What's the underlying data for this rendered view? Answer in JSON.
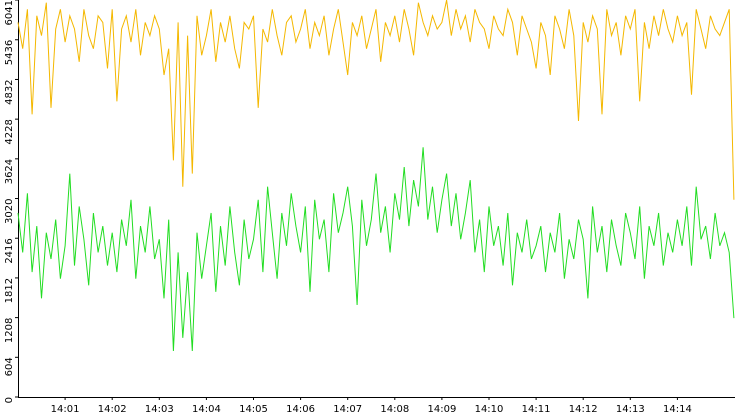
{
  "chart_data": {
    "type": "line",
    "categories": [
      null,
      null,
      null,
      null,
      null,
      null,
      null,
      null,
      null,
      null,
      "14:01",
      null,
      null,
      null,
      null,
      null,
      null,
      null,
      null,
      null,
      "14:02",
      null,
      null,
      null,
      null,
      null,
      null,
      null,
      null,
      null,
      "14:03",
      null,
      null,
      null,
      null,
      null,
      null,
      null,
      null,
      null,
      "14:04",
      null,
      null,
      null,
      null,
      null,
      null,
      null,
      null,
      null,
      "14:05",
      null,
      null,
      null,
      null,
      null,
      null,
      null,
      null,
      null,
      "14:06",
      null,
      null,
      null,
      null,
      null,
      null,
      null,
      null,
      null,
      "14:07",
      null,
      null,
      null,
      null,
      null,
      null,
      null,
      null,
      null,
      "14:08",
      null,
      null,
      null,
      null,
      null,
      null,
      null,
      null,
      null,
      "14:09",
      null,
      null,
      null,
      null,
      null,
      null,
      null,
      null,
      null,
      "14:10",
      null,
      null,
      null,
      null,
      null,
      null,
      null,
      null,
      null,
      "14:11",
      null,
      null,
      null,
      null,
      null,
      null,
      null,
      null,
      null,
      "14:12",
      null,
      null,
      null,
      null,
      null,
      null,
      null,
      null,
      null,
      "14:13",
      null,
      null,
      null,
      null,
      null,
      null,
      null,
      null,
      null,
      "14:14",
      null,
      null,
      null,
      null,
      null,
      null,
      null,
      null,
      null,
      null,
      null,
      null
    ],
    "series": [
      {
        "color": "#f4b800",
        "values": [
          5700,
          5300,
          5900,
          4300,
          5800,
          5500,
          6000,
          4400,
          5600,
          5900,
          5400,
          5800,
          5600,
          5100,
          5900,
          5500,
          5300,
          5800,
          5700,
          5000,
          5900,
          4500,
          5600,
          5800,
          5400,
          5900,
          5200,
          5700,
          5500,
          5800,
          5600,
          4900,
          5300,
          3600,
          5700,
          3200,
          5500,
          3400,
          5800,
          5200,
          5500,
          5900,
          5100,
          5700,
          5400,
          5800,
          5300,
          5000,
          5700,
          5600,
          5800,
          4400,
          5600,
          5400,
          5900,
          5500,
          5200,
          5700,
          5800,
          5400,
          5600,
          5900,
          5300,
          5700,
          5500,
          5800,
          5200,
          5600,
          5900,
          5400,
          4900,
          5700,
          5500,
          5800,
          5300,
          5600,
          5900,
          5100,
          5700,
          5500,
          5800,
          5400,
          5900,
          5600,
          5200,
          6000,
          5700,
          5500,
          5800,
          5600,
          5700,
          6041,
          5500,
          5900,
          5600,
          5800,
          5400,
          5900,
          5700,
          5600,
          5300,
          5800,
          5600,
          5500,
          5900,
          5700,
          5200,
          5800,
          5600,
          5400,
          5000,
          5700,
          5500,
          4900,
          5800,
          5600,
          5300,
          5900,
          5500,
          4200,
          5700,
          5400,
          5800,
          5600,
          4300,
          5900,
          5500,
          5700,
          5200,
          5800,
          5600,
          5900,
          4500,
          5700,
          5300,
          5800,
          5500,
          5900,
          5600,
          5400,
          5800,
          5500,
          5700,
          4600,
          5900,
          5600,
          5300,
          5800,
          5600,
          5500,
          5700,
          5900,
          3000
        ]
      },
      {
        "color": "#22dd22",
        "values": [
          2800,
          2200,
          3100,
          1900,
          2600,
          1500,
          2500,
          2100,
          2700,
          1800,
          2300,
          3400,
          2000,
          2900,
          2400,
          1700,
          2800,
          2200,
          2600,
          2000,
          2500,
          1900,
          2700,
          2300,
          3000,
          1800,
          2600,
          2200,
          2900,
          2100,
          2400,
          1500,
          2700,
          700,
          2200,
          900,
          1900,
          700,
          2500,
          1800,
          2300,
          2800,
          1600,
          2600,
          2000,
          2900,
          2200,
          1700,
          2700,
          2100,
          2400,
          3000,
          1900,
          3200,
          2500,
          1800,
          2800,
          2300,
          3100,
          2600,
          2200,
          2900,
          1600,
          3000,
          2400,
          2700,
          1900,
          3100,
          2500,
          2800,
          3200,
          2600,
          1400,
          3000,
          2300,
          2700,
          3400,
          2500,
          2900,
          2200,
          3100,
          2700,
          3500,
          2600,
          3300,
          2900,
          3800,
          2700,
          3200,
          2500,
          3000,
          3400,
          2600,
          3100,
          2400,
          2800,
          3300,
          2200,
          2700,
          1900,
          2900,
          2300,
          2600,
          2000,
          2800,
          1700,
          2500,
          2200,
          2700,
          2100,
          2300,
          2600,
          1900,
          2500,
          2200,
          2800,
          1800,
          2400,
          2100,
          2700,
          2400,
          1500,
          2900,
          2200,
          2600,
          1900,
          2700,
          2300,
          2000,
          2800,
          2500,
          2100,
          2900,
          1800,
          2600,
          2300,
          2800,
          2000,
          2500,
          2200,
          2700,
          2300,
          2900,
          2000,
          3200,
          2400,
          2600,
          2100,
          2800,
          2300,
          2500,
          2200,
          1200
        ]
      }
    ],
    "ylim": [
      0,
      6041
    ],
    "yticks": [
      0,
      604,
      1208,
      1812,
      2416,
      3020,
      3624,
      4228,
      4832,
      5436,
      6041
    ]
  }
}
